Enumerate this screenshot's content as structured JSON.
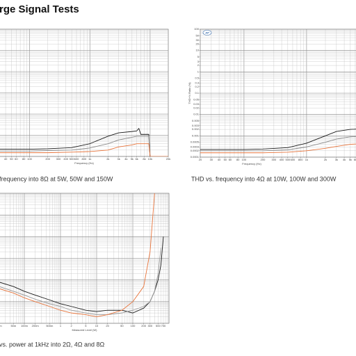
{
  "title": "rge Signal Tests",
  "captions": [
    "frequency into 8Ω at 5W, 50W and 150W",
    "THD vs. frequency into 4Ω at 10W, 100W and 300W",
    "vs. power at 1kHz into 2Ω, 4Ω and 8Ω"
  ],
  "chart_data": [
    {
      "type": "line",
      "x_label": "Frequency (Hz)",
      "xlog": true,
      "ylog": true,
      "grid": true,
      "xlim": [
        20,
        20000
      ],
      "ylim": [
        0.0001,
        100
      ],
      "xticks": [
        40,
        50,
        60,
        80,
        100,
        200,
        300,
        400,
        500,
        600,
        800,
        {
          "value": 1000,
          "label": "1k"
        },
        {
          "value": 2000,
          "label": "2k"
        },
        {
          "value": 3000,
          "label": "3k"
        },
        {
          "value": 4000,
          "label": "4k"
        },
        {
          "value": 5000,
          "label": "5k"
        },
        {
          "value": 6000,
          "label": "6k"
        },
        {
          "value": 8000,
          "label": "8k"
        },
        {
          "value": 10000,
          "label": "10k"
        },
        {
          "value": 20000,
          "label": "20k"
        }
      ],
      "x": [
        20,
        50,
        100,
        200,
        500,
        1000,
        2000,
        3000,
        5000,
        6000,
        6500,
        7000,
        9500,
        10000,
        12000,
        20000
      ],
      "series": [
        {
          "color": "#1a1a1a",
          "values": [
            0.00022,
            0.00022,
            0.00022,
            0.00023,
            0.00026,
            0.0004,
            0.0009,
            0.0013,
            0.0015,
            0.0016,
            0.0021,
            0.0011,
            0.0011,
            8e-05,
            8e-05,
            8e-05
          ]
        },
        {
          "color": "#8a8a8a",
          "values": [
            0.00018,
            0.00018,
            0.00018,
            0.00019,
            0.0002,
            0.00025,
            0.0004,
            0.0006,
            0.0008,
            0.0009,
            0.0009,
            0.0009,
            0.0009,
            9e-05,
            9e-05,
            9e-05
          ]
        },
        {
          "color": "#e8743b",
          "values": [
            0.00015,
            0.00015,
            0.00015,
            0.00015,
            0.00016,
            0.00017,
            0.0002,
            0.00028,
            0.00035,
            0.0004,
            0.0004,
            0.0004,
            0.0004,
            0.0001,
            0.0001,
            0.0001
          ]
        }
      ]
    },
    {
      "type": "line",
      "x_label": "Frequency (Hz)",
      "y_label": "THD+N Ratio (%)",
      "logo": "AP",
      "xlog": true,
      "ylog": true,
      "grid": true,
      "xlim": [
        20,
        20000
      ],
      "ylim": [
        0.0001,
        100
      ],
      "yticks": [
        100,
        50,
        30,
        20,
        10,
        5,
        3,
        2,
        1,
        0.5,
        0.3,
        0.2,
        0.1,
        0.05,
        0.03,
        0.02,
        0.01,
        0.005,
        0.003,
        0.002,
        0.001,
        0.0005,
        0.0003,
        0.0002,
        0.0001
      ],
      "xticks": [
        20,
        30,
        40,
        50,
        60,
        80,
        100,
        200,
        300,
        400,
        500,
        600,
        800,
        {
          "value": 1000,
          "label": "1k"
        },
        {
          "value": 2000,
          "label": "2k"
        },
        {
          "value": 3000,
          "label": "3k"
        },
        {
          "value": 4000,
          "label": "4k"
        },
        {
          "value": 5000,
          "label": "5k"
        },
        {
          "value": 6000,
          "label": "6k"
        }
      ],
      "x": [
        20,
        50,
        100,
        200,
        500,
        1000,
        2000,
        3000,
        5000,
        10000,
        20000
      ],
      "series": [
        {
          "color": "#1a1a1a",
          "values": [
            0.00023,
            0.00023,
            0.00023,
            0.00024,
            0.00028,
            0.00045,
            0.001,
            0.0016,
            0.002,
            0.0022,
            0.0022
          ]
        },
        {
          "color": "#8a8a8a",
          "values": [
            0.0002,
            0.0002,
            0.0002,
            0.0002,
            0.00022,
            0.0003,
            0.0005,
            0.0007,
            0.0009,
            0.001,
            0.001
          ]
        },
        {
          "color": "#e8743b",
          "values": [
            0.00016,
            0.00016,
            0.00016,
            0.00016,
            0.00017,
            0.0002,
            0.00026,
            0.00032,
            0.0004,
            0.00045,
            0.00045
          ]
        }
      ]
    },
    {
      "type": "line",
      "x_label": "Measured Level (W)",
      "xlog": true,
      "ylog": true,
      "grid": true,
      "xlim": [
        0.001,
        1000
      ],
      "ylim": [
        0.0001,
        100
      ],
      "xticks": [
        {
          "value": 0.01,
          "label": "10m"
        },
        {
          "value": 0.02,
          "label": "20m"
        },
        {
          "value": 0.05,
          "label": "50m"
        },
        {
          "value": 0.1,
          "label": "100m"
        },
        {
          "value": 0.2,
          "label": "200m"
        },
        {
          "value": 0.5,
          "label": "500m"
        },
        1,
        2,
        5,
        10,
        20,
        50,
        100,
        200,
        300,
        500,
        700
      ],
      "x": [
        0.01,
        0.02,
        0.05,
        0.1,
        0.2,
        0.5,
        1,
        2,
        5,
        10,
        20,
        50,
        100,
        200,
        300,
        400,
        500,
        600,
        700
      ],
      "series": [
        {
          "color": "#1a1a1a",
          "values": [
            0.012,
            0.008,
            0.005,
            0.003,
            0.002,
            0.0012,
            0.0008,
            0.0006,
            0.0004,
            0.00035,
            0.0004,
            0.0004,
            0.0003,
            0.0005,
            0.001,
            0.003,
            0.01,
            0.05,
            1
          ]
        },
        {
          "color": "#9a9a9a",
          "values": [
            0.008,
            0.005,
            0.003,
            0.002,
            0.0013,
            0.0008,
            0.0006,
            0.0004,
            0.0003,
            0.00025,
            0.00025,
            0.0003,
            0.0004,
            0.0006,
            0.001,
            0.003,
            0.02,
            0.3,
            null
          ]
        },
        {
          "color": "#e8743b",
          "values": [
            0.006,
            0.004,
            0.0025,
            0.0015,
            0.001,
            0.0006,
            0.0004,
            0.0003,
            0.00025,
            0.0002,
            0.00025,
            0.0004,
            0.001,
            0.005,
            0.2,
            100,
            null,
            null,
            null
          ]
        }
      ]
    }
  ]
}
